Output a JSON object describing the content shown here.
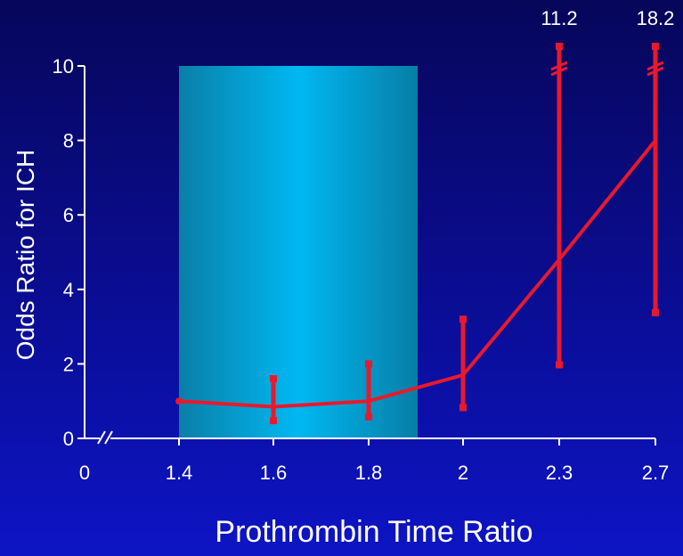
{
  "chart_data": {
    "type": "line",
    "xlabel": "Prothrombin Time Ratio",
    "ylabel": "Odds Ratio for ICH",
    "x_tick_labels": [
      "0",
      "1.4",
      "1.6",
      "1.8",
      "2",
      "2.3",
      "2.7"
    ],
    "y_ticks": [
      0,
      2,
      4,
      6,
      8,
      10
    ],
    "ylim": [
      0,
      10
    ],
    "axis_break": "x-axis between 0 and 1.4; y-axis break for error bars exceeding 10",
    "shaded_region": {
      "x_from": "1.4",
      "x_to": "1.9",
      "color": "#00b4f0"
    },
    "series": [
      {
        "color": "#e8192c",
        "points": [
          {
            "x": "1.4",
            "y": 1.0
          },
          {
            "x": "1.6",
            "y": 0.85,
            "ci_low": 0.5,
            "ci_high": 1.6
          },
          {
            "x": "1.8",
            "y": 1.0,
            "ci_low": 0.6,
            "ci_high": 2.0
          },
          {
            "x": "2",
            "y": 1.7,
            "ci_low": 0.85,
            "ci_high": 3.2
          },
          {
            "x": "2.3",
            "y": 4.8,
            "ci_low": 2.0,
            "ci_high": 11.2,
            "ci_high_label": "11.2"
          },
          {
            "x": "2.7",
            "y": 8.0,
            "ci_low": 3.4,
            "ci_high": 18.2,
            "ci_high_label": "18.2"
          }
        ]
      }
    ]
  }
}
